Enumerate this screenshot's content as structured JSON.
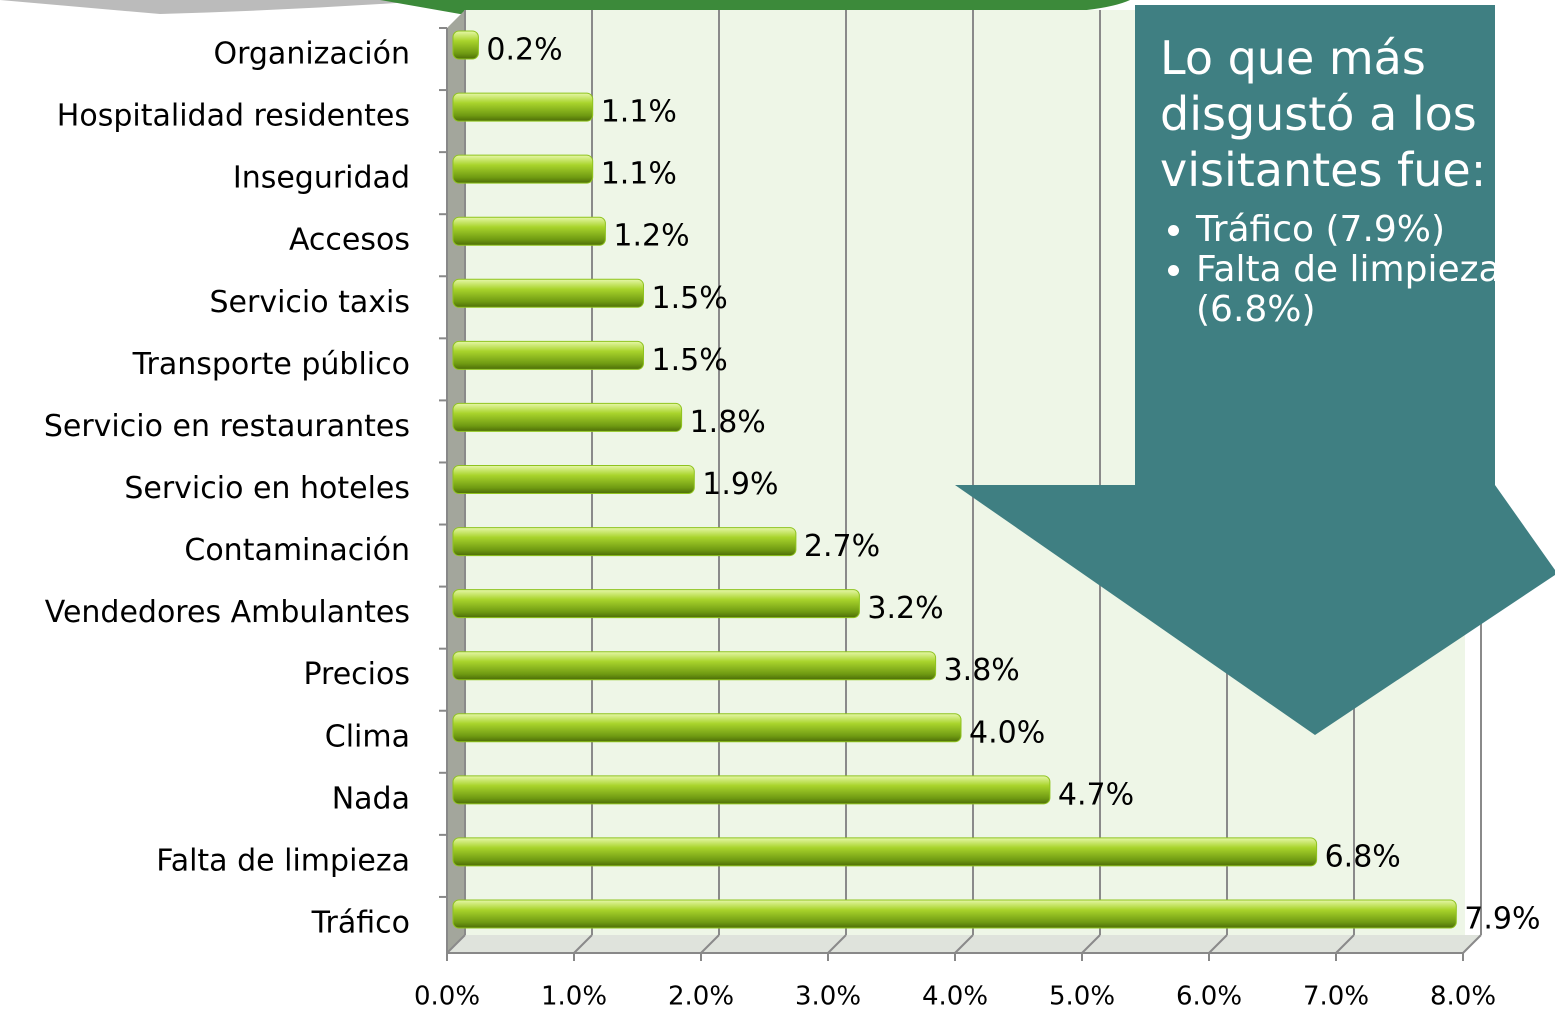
{
  "chart_data": {
    "type": "bar",
    "orientation": "horizontal",
    "categories": [
      "Organización",
      "Hospitalidad residentes",
      "Inseguridad",
      "Accesos",
      "Servicio taxis",
      "Transporte público",
      "Servicio en restaurantes",
      "Servicio en hoteles",
      "Contaminación",
      "Vendedores Ambulantes",
      "Precios",
      "Clima",
      "Nada",
      "Falta de limpieza",
      "Tráfico"
    ],
    "values": [
      0.2,
      1.1,
      1.1,
      1.2,
      1.5,
      1.5,
      1.8,
      1.9,
      2.7,
      3.2,
      3.8,
      4.0,
      4.7,
      6.8,
      7.9
    ],
    "value_labels": [
      "0.2%",
      "1.1%",
      "1.1%",
      "1.2%",
      "1.5%",
      "1.5%",
      "1.8%",
      "1.9%",
      "2.7%",
      "3.2%",
      "3.8%",
      "4.0%",
      "4.7%",
      "6.8%",
      "7.9%"
    ],
    "color": "#8fc31f",
    "xlim": [
      0,
      8
    ],
    "xticks": [
      {
        "value": 0,
        "label": "0.0%"
      },
      {
        "value": 1,
        "label": "1.0%"
      },
      {
        "value": 2,
        "label": "2.0%"
      },
      {
        "value": 3,
        "label": "3.0%"
      },
      {
        "value": 4,
        "label": "4.0%"
      },
      {
        "value": 5,
        "label": "5.0%"
      },
      {
        "value": 6,
        "label": "6.0%"
      },
      {
        "value": 7,
        "label": "7.0%"
      },
      {
        "value": 8,
        "label": "8.0%"
      }
    ],
    "grid": true,
    "annotation": {
      "title": "Lo que más disgustó a los visitantes fue:",
      "items": [
        "Tráfico (7.9%)",
        "Falta de limpieza (6.8%)"
      ]
    }
  }
}
